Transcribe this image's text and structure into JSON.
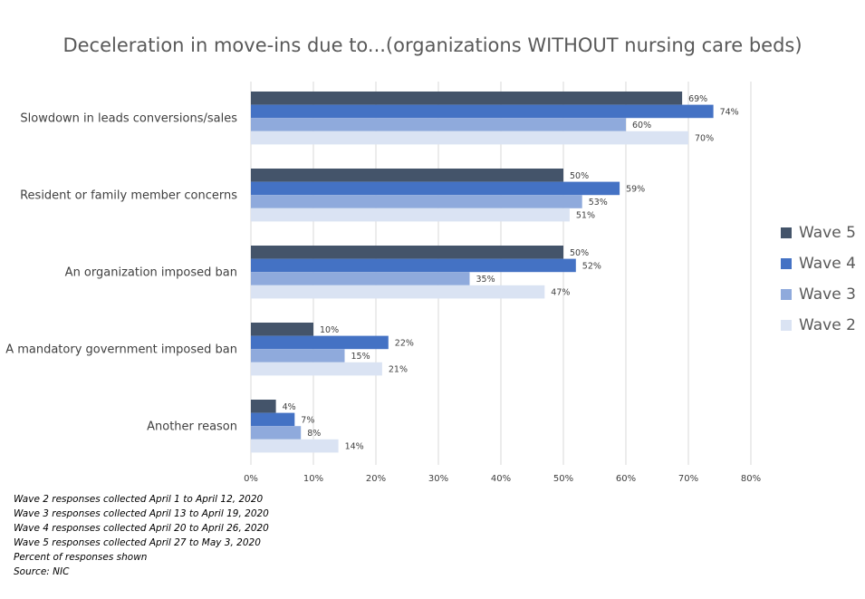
{
  "chart_data": {
    "type": "bar",
    "orientation": "horizontal",
    "title": "Deceleration in move-ins due to...(organizations WITHOUT nursing care beds)",
    "categories": [
      "Slowdown in leads conversions/sales",
      "Resident or family member concerns",
      "An organization imposed ban",
      "A mandatory government imposed ban",
      "Another reason"
    ],
    "series": [
      {
        "name": "Wave 5",
        "color": "#44546a",
        "values": [
          69,
          50,
          50,
          10,
          4
        ],
        "labels": [
          "69%",
          "50%",
          "50%",
          "10%",
          "4%"
        ]
      },
      {
        "name": "Wave 4",
        "color": "#4472c4",
        "values": [
          74,
          59,
          52,
          22,
          7
        ],
        "labels": [
          "74%",
          "59%",
          "52%",
          "22%",
          "7%"
        ]
      },
      {
        "name": "Wave 3",
        "color": "#8faadc",
        "values": [
          60,
          53,
          35,
          15,
          8
        ],
        "labels": [
          "60%",
          "53%",
          "35%",
          "15%",
          "8%"
        ]
      },
      {
        "name": "Wave 2",
        "color": "#dae3f3",
        "values": [
          70,
          51,
          47,
          21,
          14
        ],
        "labels": [
          "70%",
          "51%",
          "47%",
          "21%",
          "14%"
        ]
      }
    ],
    "xlim": [
      0,
      80
    ],
    "xticks": [
      "0%",
      "10%",
      "20%",
      "30%",
      "40%",
      "50%",
      "60%",
      "70%",
      "80%"
    ],
    "grid": true,
    "legend_position": "right"
  },
  "notes": [
    "Wave 2 responses collected  April 1 to April 12, 2020",
    "Wave 3 responses collected  April 13 to April 19, 2020",
    "Wave 4 responses collected  April 20 to April 26, 2020",
    "Wave 5 responses collected  April 27 to May 3, 2020",
    "Percent  of responses shown",
    "Source: NIC"
  ]
}
